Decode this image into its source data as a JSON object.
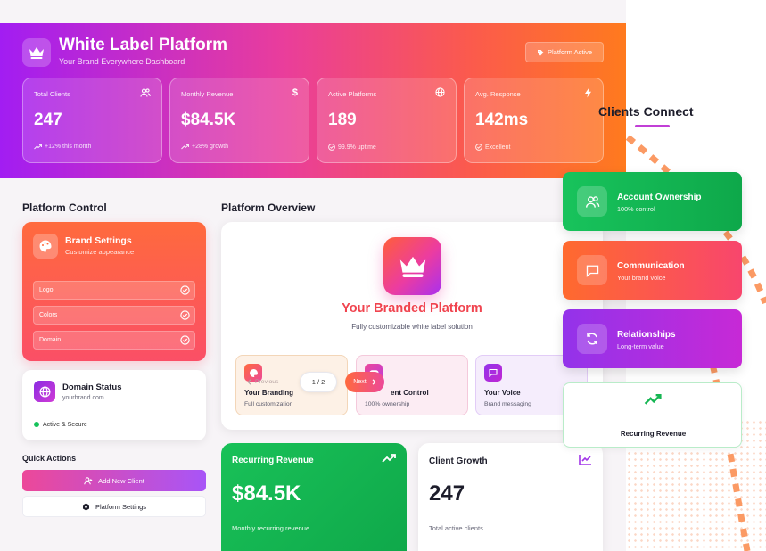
{
  "colors": {
    "header_gradient": [
      "#a21df2",
      "#e93d9c",
      "#ff7a1e"
    ],
    "green": "#18c35c",
    "orange": "#ff6a2e",
    "purple": "#9333ea",
    "pink": "#ec4899"
  },
  "header": {
    "icon": "crown-icon",
    "title": "White Label Platform",
    "subtitle": "Your Brand Everywhere Dashboard",
    "status_icon": "tag-icon",
    "status_label": "Platform Active"
  },
  "stats": [
    {
      "label": "Total Clients",
      "value": "247",
      "note": "+12% this month",
      "icon": "users-icon",
      "note_icon": "trending-up-icon"
    },
    {
      "label": "Monthly Revenue",
      "value": "$84.5K",
      "note": "+28% growth",
      "icon": "dollar-icon",
      "note_icon": "trending-up-icon"
    },
    {
      "label": "Active Platforms",
      "value": "189",
      "note": "99.9% uptime",
      "icon": "globe-icon",
      "note_icon": "check-circle-icon"
    },
    {
      "label": "Avg. Response",
      "value": "142ms",
      "note": "Excellent",
      "icon": "bolt-icon",
      "note_icon": "check-circle-icon"
    }
  ],
  "platform_control": {
    "heading": "Platform Control",
    "brand_settings": {
      "title": "Brand Settings",
      "subtitle": "Customize appearance",
      "icon": "palette-icon",
      "rows": [
        {
          "label": "Logo",
          "icon": "check-circle-icon"
        },
        {
          "label": "Colors",
          "icon": "check-circle-icon"
        },
        {
          "label": "Domain",
          "icon": "check-circle-icon"
        }
      ]
    },
    "domain_status": {
      "title": "Domain Status",
      "url": "yourbrand.com",
      "state": "Active & Secure",
      "icon": "globe-icon"
    }
  },
  "quick_actions": {
    "heading": "Quick Actions",
    "primary_label": "Add New Client",
    "primary_icon": "user-plus-icon",
    "secondary_label": "Platform Settings",
    "secondary_icon": "gear-icon"
  },
  "overview": {
    "heading": "Platform Overview",
    "hero_title": "Your Branded Platform",
    "hero_subtitle": "Fully customizable white label solution",
    "features": [
      {
        "title": "Your Branding",
        "subtitle": "Full customization",
        "icon": "palette-icon"
      },
      {
        "title": "Client Control",
        "title_visible": "ent Control",
        "subtitle": "100% ownership",
        "icon": "gamepad-icon"
      },
      {
        "title": "Your Voice",
        "subtitle": "Brand messaging",
        "icon": "message-icon"
      }
    ],
    "carousel": {
      "prev_label": "Previous",
      "counter": "1 / 2",
      "next_label": "Next"
    }
  },
  "revenue_card": {
    "title": "Recurring Revenue",
    "value": "$84.5K",
    "note": "Monthly recurring revenue",
    "icon": "trending-up-icon"
  },
  "growth_card": {
    "title": "Client Growth",
    "value": "247",
    "note": "Total active clients",
    "icon": "chart-line-icon"
  },
  "clients_connect": {
    "title": "Clients Connect",
    "cards": [
      {
        "title": "Account Ownership",
        "subtitle": "100% control",
        "icon": "users-icon"
      },
      {
        "title": "Communication",
        "subtitle": "Your brand voice",
        "icon": "message-icon"
      },
      {
        "title": "Relationships",
        "subtitle": "Long-term value",
        "icon": "refresh-icon"
      }
    ],
    "revenue_label": "Recurring Revenue",
    "revenue_icon": "trending-up-icon"
  }
}
